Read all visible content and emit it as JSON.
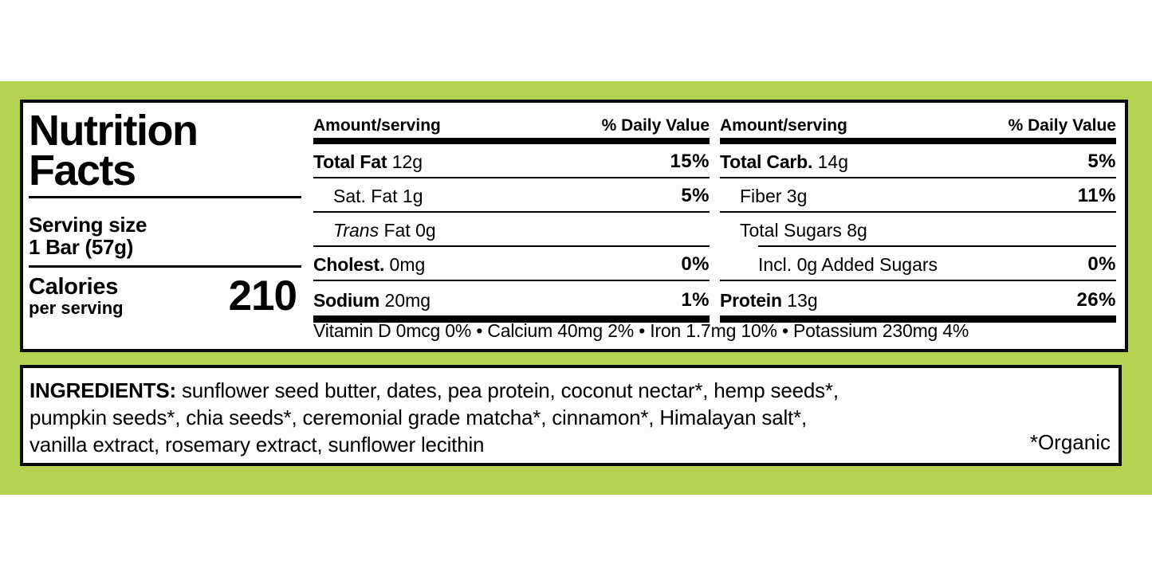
{
  "label": {
    "title_line1": "Nutrition",
    "title_line2": "Facts",
    "serving_size_label": "Serving size",
    "serving_size_value": "1 Bar (57g)",
    "calories_label": "Calories",
    "calories_sublabel": "per serving",
    "calories_value": "210"
  },
  "columns": [
    {
      "header_amount": "Amount/serving",
      "header_dv": "% Daily Value",
      "rows": [
        {
          "bold": "Total Fat",
          "rest": " 12g",
          "dv": "15%"
        },
        {
          "bold": "",
          "rest": "Sat. Fat 1g",
          "dv": "5%"
        },
        {
          "italic": "Trans",
          "rest": " Fat 0g",
          "dv": ""
        },
        {
          "bold": "Cholest.",
          "rest": " 0mg",
          "dv": "0%"
        },
        {
          "bold": "Sodium",
          "rest": " 20mg",
          "dv": "1%"
        }
      ]
    },
    {
      "header_amount": "Amount/serving",
      "header_dv": "% Daily Value",
      "rows": [
        {
          "bold": "Total Carb.",
          "rest": " 14g",
          "dv": "5%"
        },
        {
          "bold": "",
          "rest": "Fiber 3g",
          "dv": "11%"
        },
        {
          "bold": "",
          "rest": "Total Sugars 8g",
          "dv": ""
        },
        {
          "bold": "",
          "rest": "Incl. 0g Added Sugars",
          "dv": "0%"
        },
        {
          "bold": "Protein",
          "rest": " 13g",
          "dv": "26%"
        }
      ]
    }
  ],
  "micronutrients": "Vitamin D 0mcg 0% • Calcium 40mg 2% • Iron 1.7mg 10% • Potassium 230mg 4%",
  "ingredients": {
    "label": "INGREDIENTS:",
    "line1_rest": " sunflower seed butter, dates, pea protein, coconut nectar*, hemp seeds*,",
    "line2": "pumpkin seeds*, chia seeds*, ceremonial grade matcha*, cinnamon*, Himalayan salt*,",
    "line3": "vanilla extract, rosemary extract, sunflower lecithin",
    "footnote": "*Organic"
  },
  "colors": {
    "background_green": "#b2d450",
    "panel_background": "#fdfdfd",
    "text_black": "#000000"
  }
}
